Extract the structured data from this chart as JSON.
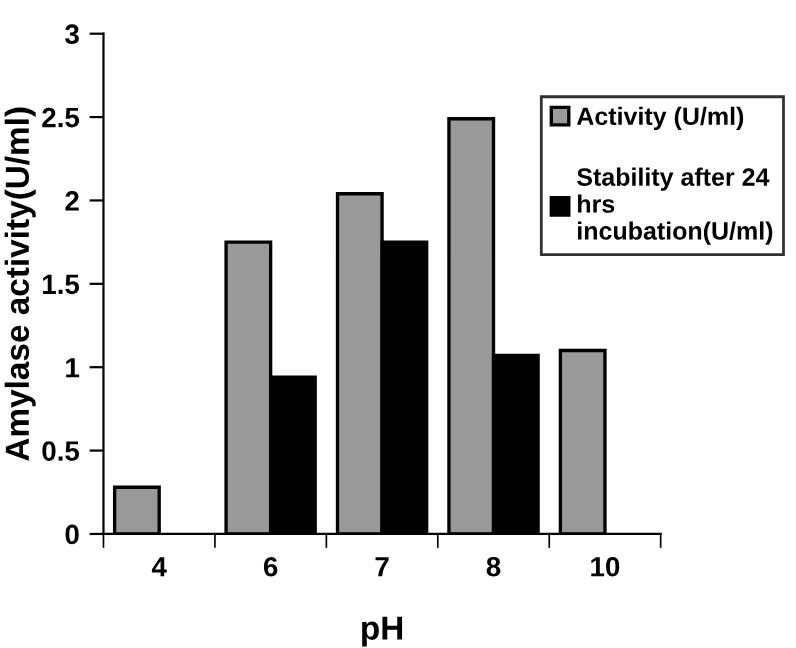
{
  "chart_data": {
    "type": "bar",
    "xlabel": "pH",
    "ylabel": "Amylase activity(U/ml)",
    "categories": [
      "4",
      "6",
      "7",
      "8",
      "10"
    ],
    "series": [
      {
        "name": "Activity (U/ml)",
        "color": "#999999",
        "values": [
          0.28,
          1.75,
          2.04,
          2.49,
          1.1
        ]
      },
      {
        "name": "Stability after 24\nhrs\nincubation(U/ml)",
        "color": "#000000",
        "values": [
          null,
          0.94,
          1.75,
          1.07,
          null
        ]
      }
    ],
    "ylim": [
      0,
      3
    ],
    "yticks": [
      0,
      0.5,
      1,
      1.5,
      2,
      2.5,
      3
    ],
    "grid": false,
    "legend": "right"
  }
}
